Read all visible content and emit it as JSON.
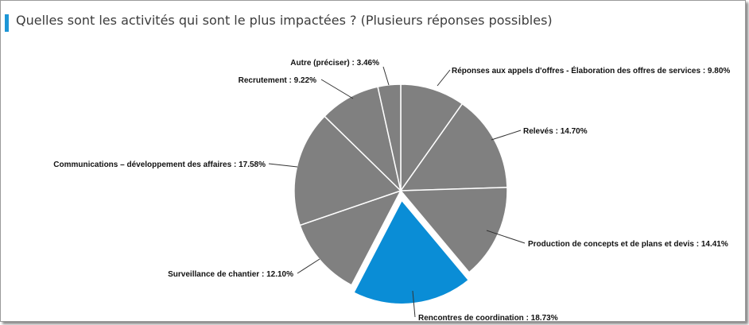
{
  "header": {
    "title": "Quelles sont les activités qui sont le plus impactées ? (Plusieurs réponses possibles)"
  },
  "colors": {
    "accent": "#1d96d6",
    "slice_default": "#808080",
    "slice_highlight": "#0a8dd6",
    "slice_border": "#ffffff",
    "leader": "#333333"
  },
  "chart_data": {
    "type": "pie",
    "title": "Quelles sont les activités qui sont le plus impactées ? (Plusieurs réponses possibles)",
    "slices": [
      {
        "label": "Réponses aux appels d'offres - Élaboration des offres de services",
        "value": 9.8,
        "display": "Réponses aux appels d'offres - Élaboration des offres de services : 9.80%",
        "highlighted": false
      },
      {
        "label": "Relevés",
        "value": 14.7,
        "display": "Relevés : 14.70%",
        "highlighted": false
      },
      {
        "label": "Production de concepts et de plans et devis",
        "value": 14.41,
        "display": "Production de concepts et de plans et devis : 14.41%",
        "highlighted": false
      },
      {
        "label": "Rencontres de coordination",
        "value": 18.73,
        "display": "Rencontres de coordination : 18.73%",
        "highlighted": true
      },
      {
        "label": "Surveillance de chantier",
        "value": 12.1,
        "display": "Surveillance de chantier : 12.10%",
        "highlighted": false
      },
      {
        "label": "Communications – développement des affaires",
        "value": 17.58,
        "display": "Communications – développement des affaires : 17.58%",
        "highlighted": false
      },
      {
        "label": "Recrutement",
        "value": 9.22,
        "display": "Recrutement : 9.22%",
        "highlighted": false
      },
      {
        "label": "Autre (préciser)",
        "value": 3.46,
        "display": "Autre (préciser) : 3.46%",
        "highlighted": false
      }
    ],
    "start_angle": "top",
    "direction": "clockwise",
    "legend": "none"
  }
}
